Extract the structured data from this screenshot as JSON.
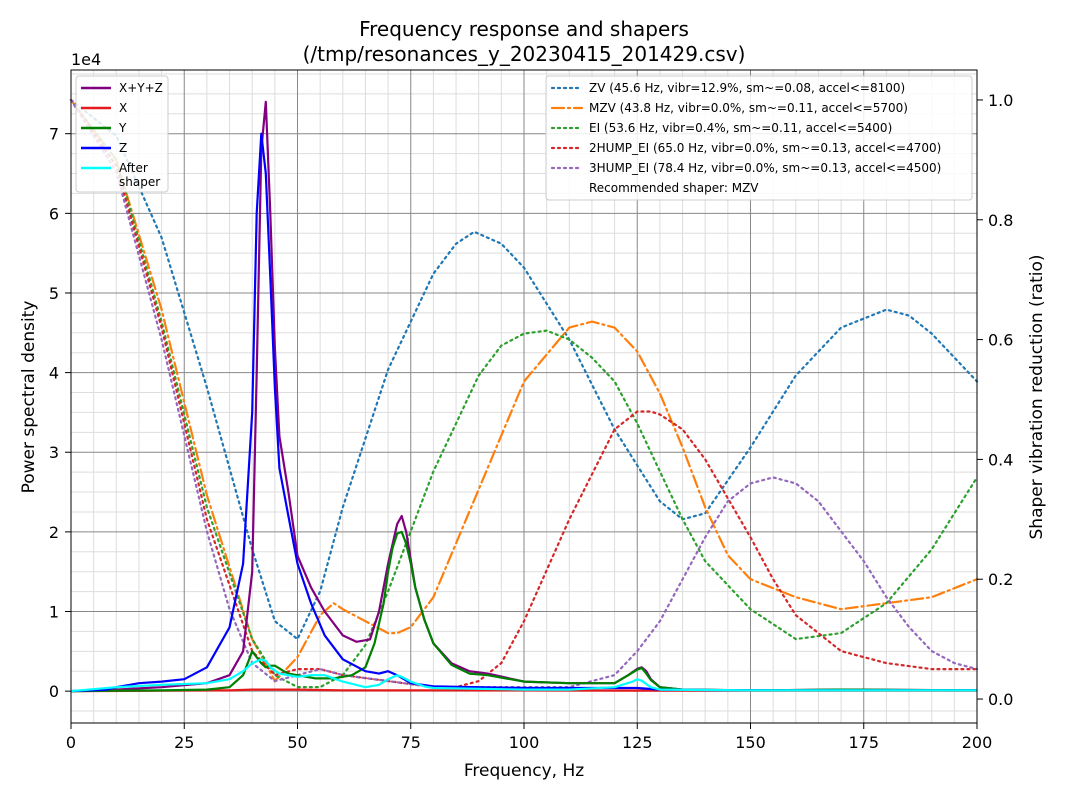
{
  "chart_data": {
    "type": "line",
    "title": "Frequency response and shapers",
    "subtitle": "(/tmp/resonances_y_20230415_201429.csv)",
    "xlabel": "Frequency, Hz",
    "ylabel": "Power spectral density",
    "y2label": "Shaper vibration reduction (ratio)",
    "y_scale_label": "1e4",
    "xlim": [
      0,
      200
    ],
    "ylim": [
      -0.4,
      7.8
    ],
    "y2lim": [
      -0.04,
      1.05
    ],
    "x_ticks": [
      "0",
      "25",
      "50",
      "75",
      "100",
      "125",
      "150",
      "175",
      "200"
    ],
    "y_ticks": [
      "0",
      "1",
      "2",
      "3",
      "4",
      "5",
      "6",
      "7"
    ],
    "y2_ticks": [
      "0.0",
      "0.2",
      "0.4",
      "0.6",
      "0.8",
      "1.0"
    ],
    "grid": true,
    "legend_left_placement": "upper-left",
    "legend_right_placement": "upper-right",
    "psd_series": [
      {
        "name": "X+Y+Z",
        "color": "#800080",
        "style": "solid",
        "x": [
          0,
          10,
          20,
          30,
          35,
          38,
          40,
          41,
          42,
          43,
          44,
          45,
          46,
          48,
          50,
          53,
          56,
          60,
          63,
          66,
          68,
          70,
          72,
          73,
          74,
          76,
          78,
          80,
          84,
          88,
          92,
          100,
          110,
          120,
          123,
          125,
          126,
          127,
          128,
          130,
          135,
          150,
          170,
          200
        ],
        "y": [
          0,
          0.02,
          0.05,
          0.1,
          0.2,
          0.5,
          1.5,
          4.0,
          6.8,
          7.4,
          6.0,
          4.3,
          3.2,
          2.5,
          1.7,
          1.3,
          1.0,
          0.7,
          0.62,
          0.65,
          1.0,
          1.6,
          2.1,
          2.2,
          2.0,
          1.3,
          0.9,
          0.6,
          0.35,
          0.25,
          0.22,
          0.12,
          0.1,
          0.1,
          0.2,
          0.28,
          0.3,
          0.25,
          0.15,
          0.05,
          0.02,
          0.01,
          0.02,
          0.01
        ]
      },
      {
        "name": "X",
        "color": "#e41a1c",
        "style": "solid",
        "x": [
          0,
          20,
          30,
          35,
          40,
          45,
          50,
          60,
          70,
          80,
          100,
          130,
          160,
          200
        ],
        "y": [
          0,
          0.005,
          0.01,
          0.01,
          0.02,
          0.02,
          0.02,
          0.01,
          0.01,
          0.01,
          0.01,
          0.005,
          0.005,
          0.005
        ]
      },
      {
        "name": "Y",
        "color": "#008000",
        "style": "solid",
        "x": [
          0,
          10,
          20,
          30,
          35,
          38,
          40,
          42,
          43,
          44,
          45,
          47,
          48,
          50,
          54,
          58,
          62,
          65,
          67,
          69,
          70,
          71,
          72,
          73,
          74,
          75,
          76,
          78,
          80,
          84,
          88,
          92,
          100,
          110,
          120,
          123,
          125,
          126,
          127,
          128,
          130,
          135,
          150,
          170,
          200
        ],
        "y": [
          0,
          0.005,
          0.01,
          0.02,
          0.05,
          0.2,
          0.5,
          0.35,
          0.3,
          0.32,
          0.32,
          0.25,
          0.22,
          0.2,
          0.16,
          0.16,
          0.2,
          0.3,
          0.6,
          1.1,
          1.5,
          1.8,
          1.98,
          2.0,
          1.85,
          1.6,
          1.3,
          0.9,
          0.6,
          0.33,
          0.22,
          0.2,
          0.12,
          0.1,
          0.1,
          0.2,
          0.27,
          0.29,
          0.22,
          0.14,
          0.05,
          0.02,
          0.01,
          0.02,
          0.01
        ]
      },
      {
        "name": "Z",
        "color": "#0000ff",
        "style": "solid",
        "x": [
          0,
          8,
          10,
          15,
          20,
          25,
          30,
          35,
          38,
          40,
          41,
          42,
          43,
          44,
          45,
          46,
          48,
          50,
          53,
          56,
          60,
          65,
          68,
          70,
          72,
          75,
          80,
          90,
          100,
          110,
          120,
          125,
          130,
          150,
          170,
          200
        ],
        "y": [
          0,
          0.02,
          0.05,
          0.1,
          0.12,
          0.15,
          0.3,
          0.8,
          1.6,
          3.5,
          6.0,
          7.0,
          6.5,
          5.2,
          3.8,
          2.8,
          2.2,
          1.6,
          1.1,
          0.7,
          0.4,
          0.25,
          0.22,
          0.25,
          0.2,
          0.1,
          0.06,
          0.05,
          0.04,
          0.04,
          0.04,
          0.04,
          0.02,
          0.01,
          0.01,
          0.01
        ]
      },
      {
        "name": "After\nshaper",
        "color": "#00ffff",
        "style": "solid",
        "x": [
          0,
          10,
          20,
          30,
          35,
          38,
          40,
          42,
          43,
          44,
          46,
          48,
          50,
          53,
          56,
          60,
          65,
          68,
          70,
          72,
          73,
          75,
          78,
          80,
          90,
          100,
          110,
          120,
          124,
          125,
          126,
          128,
          130,
          150,
          200
        ],
        "y": [
          0,
          0.05,
          0.08,
          0.1,
          0.15,
          0.25,
          0.35,
          0.4,
          0.38,
          0.3,
          0.22,
          0.2,
          0.18,
          0.2,
          0.2,
          0.12,
          0.05,
          0.08,
          0.15,
          0.2,
          0.18,
          0.12,
          0.06,
          0.04,
          0.03,
          0.02,
          0.02,
          0.05,
          0.12,
          0.15,
          0.13,
          0.05,
          0.02,
          0.01,
          0.01
        ]
      }
    ],
    "shaper_series": [
      {
        "name": "ZV (45.6 Hz, vibr=12.9%, sm~=0.08, accel<=8100)",
        "color": "#1f77b4",
        "style": "dotted",
        "x": [
          0,
          10,
          20,
          30,
          40,
          45,
          50,
          55,
          60,
          70,
          80,
          85,
          89,
          95,
          100,
          110,
          120,
          130,
          135,
          140,
          150,
          160,
          170,
          180,
          185,
          190,
          200
        ],
        "y": [
          1.0,
          0.94,
          0.77,
          0.52,
          0.25,
          0.13,
          0.1,
          0.18,
          0.32,
          0.55,
          0.71,
          0.76,
          0.78,
          0.76,
          0.72,
          0.6,
          0.45,
          0.33,
          0.3,
          0.31,
          0.42,
          0.54,
          0.62,
          0.65,
          0.64,
          0.61,
          0.53
        ]
      },
      {
        "name": "MZV (43.8 Hz, vibr=0.0%, sm~=0.11, accel<=5700)",
        "color": "#ff7f0e",
        "style": "dashdot",
        "x": [
          0,
          10,
          20,
          30,
          40,
          45,
          50,
          55,
          58,
          60,
          65,
          70,
          72,
          75,
          80,
          90,
          100,
          110,
          115,
          120,
          125,
          130,
          135,
          140,
          145,
          150,
          160,
          170,
          180,
          190,
          200
        ],
        "y": [
          1.0,
          0.9,
          0.65,
          0.34,
          0.1,
          0.03,
          0.07,
          0.14,
          0.16,
          0.15,
          0.13,
          0.11,
          0.11,
          0.12,
          0.17,
          0.35,
          0.53,
          0.62,
          0.63,
          0.62,
          0.58,
          0.51,
          0.42,
          0.32,
          0.24,
          0.2,
          0.17,
          0.15,
          0.16,
          0.17,
          0.2
        ]
      },
      {
        "name": "EI (53.6 Hz, vibr=0.4%, sm~=0.11, accel<=5400)",
        "color": "#2ca02c",
        "style": "dotted",
        "x": [
          0,
          10,
          20,
          30,
          40,
          45,
          50,
          55,
          60,
          65,
          70,
          80,
          90,
          95,
          100,
          105,
          110,
          115,
          120,
          125,
          130,
          135,
          140,
          150,
          160,
          170,
          180,
          190,
          200
        ],
        "y": [
          1.0,
          0.9,
          0.63,
          0.32,
          0.1,
          0.04,
          0.02,
          0.02,
          0.04,
          0.09,
          0.18,
          0.38,
          0.54,
          0.59,
          0.61,
          0.615,
          0.6,
          0.57,
          0.53,
          0.46,
          0.38,
          0.3,
          0.23,
          0.15,
          0.1,
          0.11,
          0.16,
          0.25,
          0.37
        ]
      },
      {
        "name": "2HUMP_EI (65.0 Hz, vibr=0.0%, sm~=0.13, accel<=4700)",
        "color": "#d62728",
        "style": "dotted",
        "x": [
          0,
          10,
          20,
          30,
          40,
          45,
          50,
          55,
          60,
          70,
          80,
          85,
          90,
          95,
          100,
          110,
          120,
          125,
          128,
          130,
          135,
          140,
          150,
          155,
          160,
          170,
          180,
          190,
          200
        ],
        "y": [
          1.0,
          0.89,
          0.62,
          0.3,
          0.08,
          0.04,
          0.05,
          0.05,
          0.04,
          0.03,
          0.02,
          0.02,
          0.03,
          0.06,
          0.13,
          0.3,
          0.45,
          0.48,
          0.48,
          0.475,
          0.45,
          0.4,
          0.27,
          0.2,
          0.14,
          0.08,
          0.06,
          0.05,
          0.05
        ]
      },
      {
        "name": "3HUMP_EI (78.4 Hz, vibr=0.0%, sm~=0.13, accel<=4500)",
        "color": "#9467bd",
        "style": "dotted",
        "x": [
          0,
          10,
          20,
          30,
          35,
          40,
          45,
          50,
          55,
          60,
          70,
          80,
          100,
          110,
          115,
          120,
          125,
          130,
          135,
          140,
          145,
          150,
          155,
          160,
          165,
          170,
          175,
          180,
          185,
          190,
          195,
          200
        ],
        "y": [
          1.0,
          0.88,
          0.6,
          0.28,
          0.15,
          0.06,
          0.03,
          0.04,
          0.05,
          0.04,
          0.03,
          0.02,
          0.02,
          0.02,
          0.03,
          0.04,
          0.08,
          0.13,
          0.2,
          0.27,
          0.33,
          0.36,
          0.37,
          0.36,
          0.33,
          0.28,
          0.23,
          0.17,
          0.12,
          0.08,
          0.06,
          0.05
        ]
      }
    ],
    "recommended_text": "Recommended shaper: MZV"
  }
}
